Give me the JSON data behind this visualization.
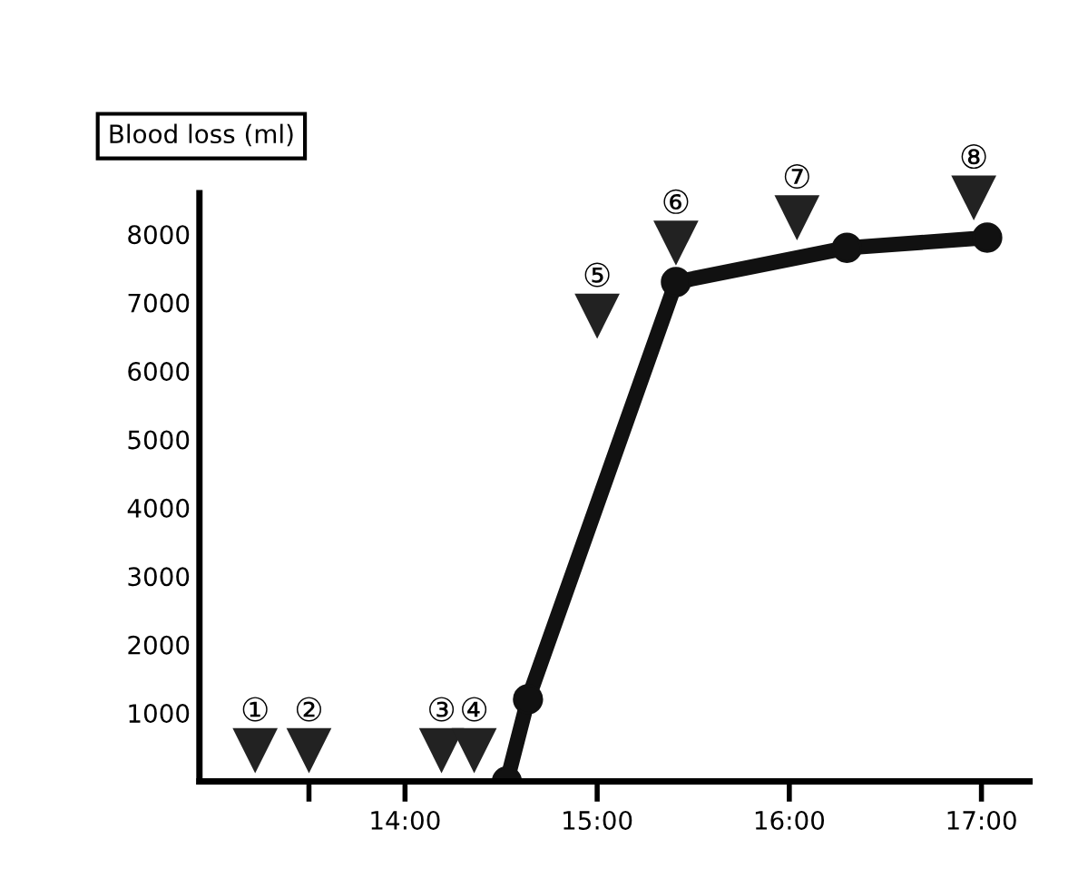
{
  "chart_data": {
    "type": "line",
    "ylabel": "Blood loss (ml)",
    "x": [
      14.53,
      14.64,
      15.41,
      16.3,
      17.03
    ],
    "series": [
      {
        "color": "#111111",
        "values": [
          0,
          1200,
          7300,
          7800,
          7950
        ]
      },
      {
        "type": "scatter",
        "color": "#222222",
        "x": [
          13.22,
          13.5,
          14.19,
          14.36,
          15.0,
          15.41,
          16.04,
          16.96
        ],
        "values": [
          450,
          450,
          450,
          450,
          6800,
          7870,
          8240,
          8530
        ],
        "marker": "triangle",
        "value_labels": [
          "①",
          "②",
          "③",
          "④",
          "⑤",
          "⑥",
          "⑦",
          "⑧"
        ]
      }
    ],
    "marker": "circle",
    "line_style": "solid",
    "xlim": [
      12.93,
      17.25
    ],
    "xticks": [
      {
        "value": 13.5,
        "label": null
      },
      {
        "value": 14,
        "label": "14:00"
      },
      {
        "value": 15,
        "label": "15:00"
      },
      {
        "value": 16,
        "label": "16:00"
      },
      {
        "value": 17,
        "label": "17:00"
      }
    ],
    "ylim": [
      0,
      8600
    ],
    "yticks": [
      1000,
      2000,
      3000,
      4000,
      5000,
      6000,
      7000,
      8000
    ],
    "grid": false,
    "legend": false
  }
}
